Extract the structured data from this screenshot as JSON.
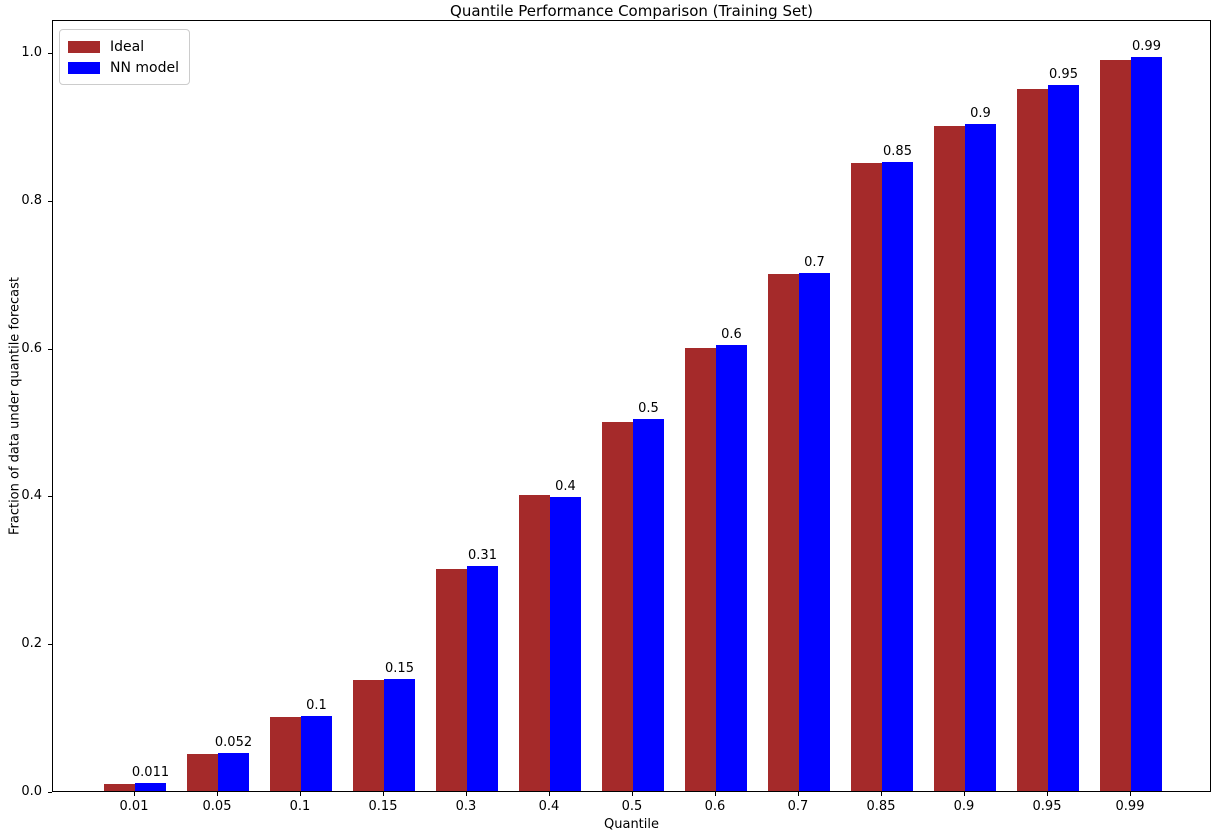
{
  "chart_data": {
    "type": "bar",
    "title": "Quantile Performance Comparison (Training Set)",
    "xlabel": "Quantile",
    "ylabel": "Fraction of data under quantile forecast",
    "categories": [
      "0.01",
      "0.05",
      "0.1",
      "0.15",
      "0.3",
      "0.4",
      "0.5",
      "0.6",
      "0.7",
      "0.85",
      "0.9",
      "0.95",
      "0.99"
    ],
    "series": [
      {
        "name": "Ideal",
        "color": "#a52a2a",
        "values": [
          0.01,
          0.05,
          0.1,
          0.15,
          0.3,
          0.4,
          0.5,
          0.6,
          0.7,
          0.85,
          0.9,
          0.95,
          0.99
        ]
      },
      {
        "name": "NN model",
        "color": "#0000ff",
        "values": [
          0.011,
          0.052,
          0.102,
          0.152,
          0.305,
          0.398,
          0.503,
          0.604,
          0.701,
          0.851,
          0.903,
          0.955,
          0.993
        ]
      }
    ],
    "bar_value_labels": [
      "0.011",
      "0.052",
      "0.1",
      "0.15",
      "0.31",
      "0.4",
      "0.5",
      "0.6",
      "0.7",
      "0.85",
      "0.9",
      "0.95",
      "0.99"
    ],
    "ytick_labels": [
      "0.0",
      "0.2",
      "0.4",
      "0.6",
      "0.8",
      "1.0"
    ],
    "yticks": [
      0.0,
      0.2,
      0.4,
      0.6,
      0.8,
      1.0
    ],
    "ylim": [
      0,
      1.045
    ],
    "grid": false,
    "legend_position": "upper left",
    "axis_color": "#000000",
    "background_color": "#ffffff"
  }
}
